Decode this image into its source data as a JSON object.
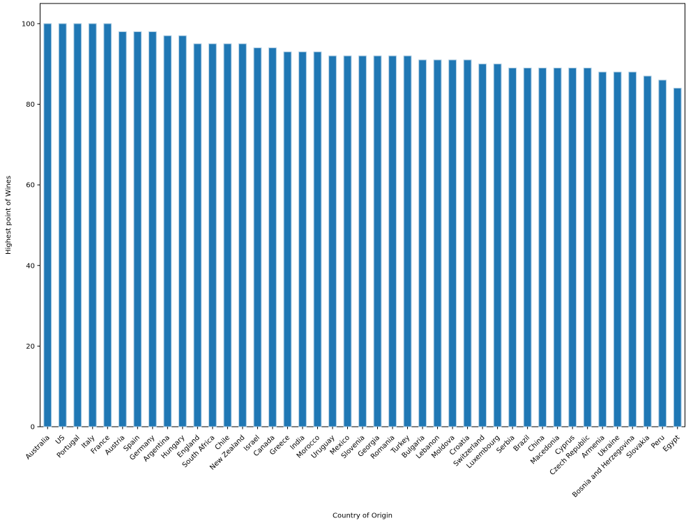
{
  "chart_data": {
    "type": "bar",
    "title": "",
    "xlabel": "Country of Origin",
    "ylabel": "Highest point of Wines",
    "ylim": [
      0,
      105
    ],
    "yticks": [
      0,
      20,
      40,
      60,
      80,
      100
    ],
    "grid": false,
    "legend": "none",
    "bar_color": "#1f77b4",
    "bar_edge_color": "#aecde3",
    "categories": [
      "Australia",
      "US",
      "Portugal",
      "Italy",
      "France",
      "Austria",
      "Spain",
      "Germany",
      "Argentina",
      "Hungary",
      "England",
      "South Africa",
      "Chile",
      "New Zealand",
      "Israel",
      "Canada",
      "Greece",
      "India",
      "Morocco",
      "Uruguay",
      "Mexico",
      "Slovenia",
      "Georgia",
      "Romania",
      "Turkey",
      "Bulgaria",
      "Lebanon",
      "Moldova",
      "Croatia",
      "Switzerland",
      "Luxembourg",
      "Serbia",
      "Brazil",
      "China",
      "Macedonia",
      "Cyprus",
      "Czech Republic",
      "Armenia",
      "Ukraine",
      "Bosnia and Herzegovina",
      "Slovakia",
      "Peru",
      "Egypt"
    ],
    "values": [
      100,
      100,
      100,
      100,
      100,
      98,
      98,
      98,
      97,
      97,
      95,
      95,
      95,
      95,
      94,
      94,
      93,
      93,
      93,
      92,
      92,
      92,
      92,
      92,
      92,
      91,
      91,
      91,
      91,
      90,
      90,
      89,
      89,
      89,
      89,
      89,
      89,
      88,
      88,
      88,
      87,
      86,
      84
    ]
  }
}
